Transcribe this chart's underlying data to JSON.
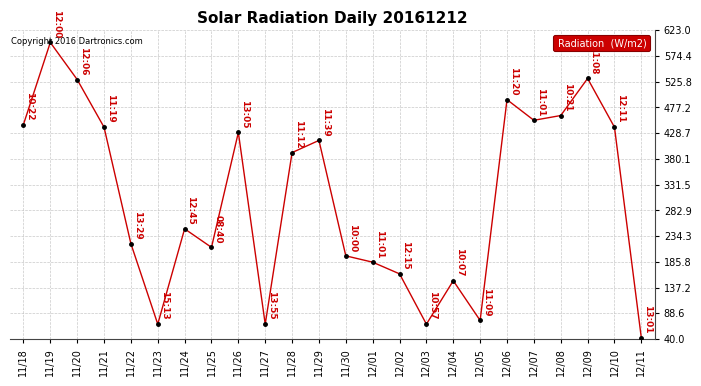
{
  "title": "Solar Radiation Daily 20161212",
  "copyright": "Copyright 2016 Dartronics.com",
  "legend_label": "Radiation  (W/m2)",
  "x_labels": [
    "11/18",
    "11/19",
    "11/20",
    "11/21",
    "11/22",
    "11/23",
    "11/24",
    "11/25",
    "11/26",
    "11/27",
    "11/28",
    "11/29",
    "11/30",
    "12/01",
    "12/02",
    "12/03",
    "12/04",
    "12/05",
    "12/06",
    "12/07",
    "12/08",
    "12/09",
    "12/10",
    "12/11"
  ],
  "y_values": [
    445,
    600,
    530,
    440,
    220,
    68,
    248,
    213,
    430,
    68,
    392,
    415,
    197,
    185,
    163,
    68,
    150,
    75,
    492,
    453,
    462,
    532,
    440,
    42
  ],
  "time_labels": [
    "10:22",
    "12:00",
    "12:06",
    "11:19",
    "13:29",
    "15:13",
    "12:45",
    "08:40",
    "13:05",
    "13:55",
    "11:12",
    "11:39",
    "10:00",
    "11:01",
    "12:15",
    "10:57",
    "10:07",
    "11:09",
    "11:20",
    "11:01",
    "10:21",
    "11:08",
    "12:11",
    "13:01"
  ],
  "ylim": [
    40.0,
    623.0
  ],
  "yticks": [
    40.0,
    88.6,
    137.2,
    185.8,
    234.3,
    282.9,
    331.5,
    380.1,
    428.7,
    477.2,
    525.8,
    574.4,
    623.0
  ],
  "line_color": "#cc0000",
  "marker_color": "#000000",
  "bg_color": "#ffffff",
  "grid_color": "#bbbbbb",
  "legend_bg": "#cc0000",
  "legend_text_color": "#ffffff",
  "title_fontsize": 11,
  "label_fontsize": 7,
  "time_fontsize": 6.5,
  "figwidth": 6.9,
  "figheight": 3.75,
  "dpi": 100
}
